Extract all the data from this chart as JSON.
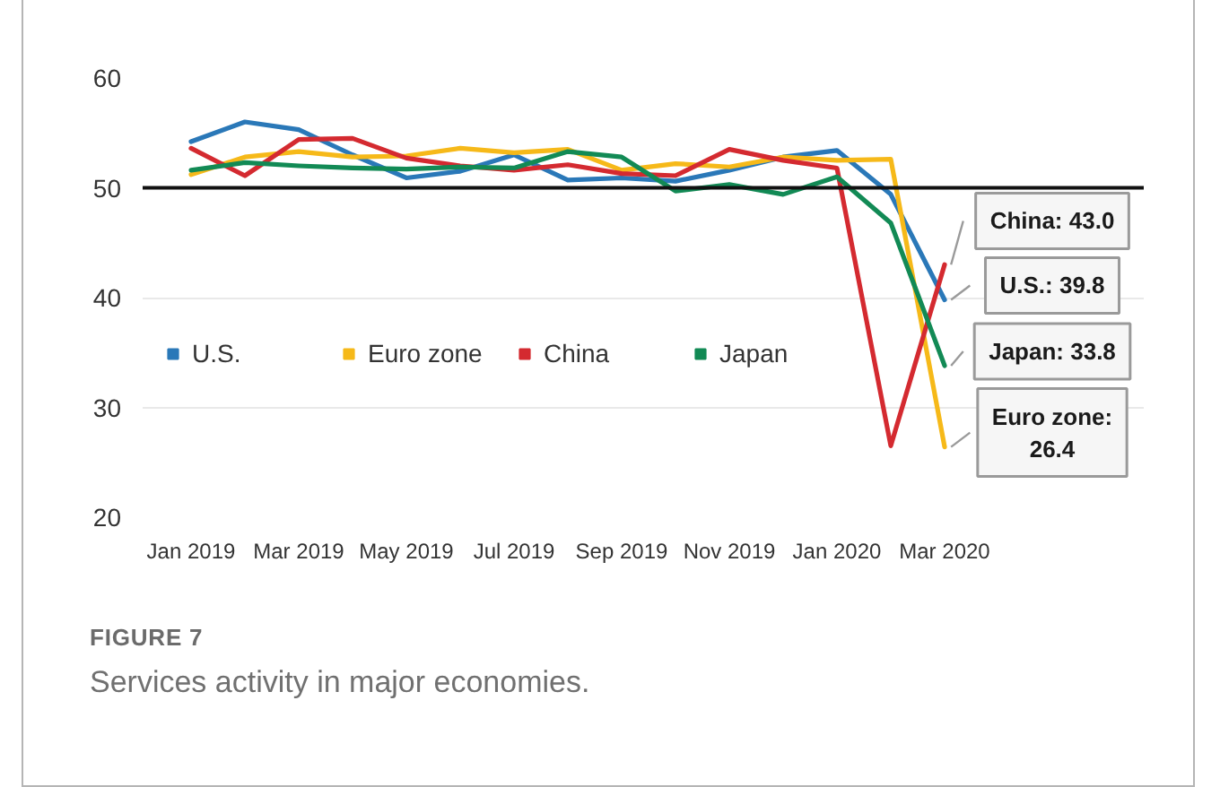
{
  "chart_data": {
    "type": "line",
    "categories": [
      "Jan 2019",
      null,
      "Mar 2019",
      null,
      "May 2019",
      null,
      "Jul 2019",
      null,
      "Sep 2019",
      null,
      "Nov 2019",
      null,
      "Jan 2020",
      null,
      "Mar 2020"
    ],
    "series": [
      {
        "name": "U.S.",
        "color": "#2a78b8",
        "values": [
          54.2,
          56.0,
          55.3,
          53.0,
          50.9,
          51.5,
          53.0,
          50.7,
          50.9,
          50.6,
          51.6,
          52.8,
          53.4,
          49.4,
          39.8
        ]
      },
      {
        "name": "Euro zone",
        "color": "#f6b919",
        "values": [
          51.2,
          52.8,
          53.3,
          52.8,
          52.9,
          53.6,
          53.2,
          53.5,
          51.6,
          52.2,
          51.9,
          52.8,
          52.5,
          52.6,
          26.4
        ]
      },
      {
        "name": "China",
        "color": "#d42a30",
        "values": [
          53.6,
          51.1,
          54.4,
          54.5,
          52.7,
          52.0,
          51.6,
          52.1,
          51.3,
          51.1,
          53.5,
          52.5,
          51.8,
          26.5,
          43.0
        ]
      },
      {
        "name": "Japan",
        "color": "#128a55",
        "values": [
          51.6,
          52.3,
          52.0,
          51.8,
          51.7,
          51.9,
          51.8,
          53.3,
          52.8,
          49.7,
          50.3,
          49.4,
          51.0,
          46.8,
          33.8
        ]
      }
    ],
    "ylim": [
      20,
      60
    ],
    "yticks": [
      20,
      30,
      40,
      50,
      60
    ],
    "grid": "y",
    "legend": "left",
    "line_style": "solid",
    "ref_lines": [
      {
        "axis": "y",
        "value": 50,
        "color": "#111111"
      }
    ],
    "annotations": [
      {
        "text": "China: 43.0",
        "x": "Mar 2020",
        "y": 43.0
      },
      {
        "text": "U.S.: 39.8",
        "x": "Mar 2020",
        "y": 39.8
      },
      {
        "text": "Japan: 33.8",
        "x": "Mar 2020",
        "y": 33.8
      },
      {
        "text": "Euro zone: 26.4",
        "x": "Mar 2020",
        "y": 26.4
      },
      "FIGURE 7",
      "Services activity in major economies."
    ]
  }
}
